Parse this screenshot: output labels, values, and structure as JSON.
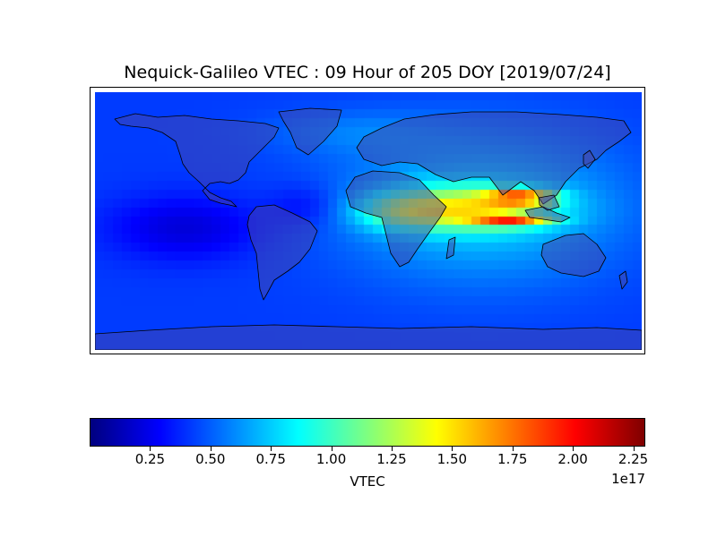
{
  "chart_data": {
    "type": "heatmap",
    "title": "Nequick-Galileo VTEC : 09 Hour of 205 DOY [2019/07/24]",
    "projection": "cylindrical world map with coastlines and country borders",
    "colormap": "jet",
    "colorbar": {
      "label": "VTEC",
      "range": [
        0,
        2.3
      ],
      "ticks": [
        "0.25",
        "0.50",
        "0.75",
        "1.00",
        "1.25",
        "1.50",
        "1.75",
        "2.00",
        "2.25"
      ],
      "exponent_label": "1e17",
      "placement": "bottom"
    },
    "observed_features": {
      "maximum": "about 2.2e17 over South Asia / Southeast Asia near 15N and 8N",
      "high": "about 1.5e17 over Africa and the Middle East",
      "minimum": "below 0.25e17 over the Pacific and Atlantic oceans west of the Americas"
    }
  }
}
